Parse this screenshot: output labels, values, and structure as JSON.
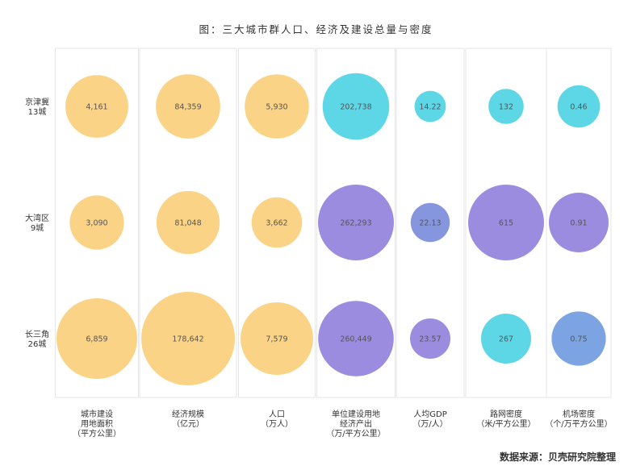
{
  "title": "图：三大城市群人口、经济及建设总量与密度",
  "source": "数据来源：贝壳研究院整理",
  "chart_data": {
    "type": "bubble-matrix",
    "title": "图：三大城市群人口、经济及建设总量与密度",
    "rows": [
      "京津冀\n13城",
      "大湾区\n9城",
      "长三角\n26城"
    ],
    "columns": [
      "城市建设\n用地面积\n（平方公里）",
      "经济规模\n（亿元）",
      "人口\n（万人）",
      "单位建设用地\n经济产出\n（万/平方公里）",
      "人均GDP\n（万/人）",
      "路网密度\n（米/平方公里）",
      "机场密度\n（个/万平方公里）"
    ],
    "values": [
      [
        4161,
        84359,
        5930,
        202738,
        14.22,
        132,
        0.46
      ],
      [
        3090,
        81048,
        3662,
        262293,
        22.13,
        615,
        0.91
      ],
      [
        6859,
        178642,
        7579,
        260449,
        23.57,
        267,
        0.75
      ]
    ],
    "labels": [
      [
        "4,161",
        "84,359",
        "5,930",
        "202,738",
        "14.22",
        "132",
        "0.46"
      ],
      [
        "3,090",
        "81,048",
        "3,662",
        "262,293",
        "22.13",
        "615",
        "0.91"
      ],
      [
        "6,859",
        "178,642",
        "7,579",
        "260,449",
        "23.57",
        "267",
        "0.75"
      ]
    ],
    "colors": [
      [
        "#FBD386",
        "#FBD386",
        "#FBD386",
        "#5DD6E6",
        "#5DD6E6",
        "#5DD6E6",
        "#5DD6E6"
      ],
      [
        "#FBD386",
        "#FBD386",
        "#FBD386",
        "#9B8CDF",
        "#8696DE",
        "#9B8CDF",
        "#9B8CDF"
      ],
      [
        "#FBD386",
        "#FBD386",
        "#FBD386",
        "#9B8CDF",
        "#9B8CDF",
        "#5DD6E6",
        "#7CA3E2"
      ]
    ]
  }
}
